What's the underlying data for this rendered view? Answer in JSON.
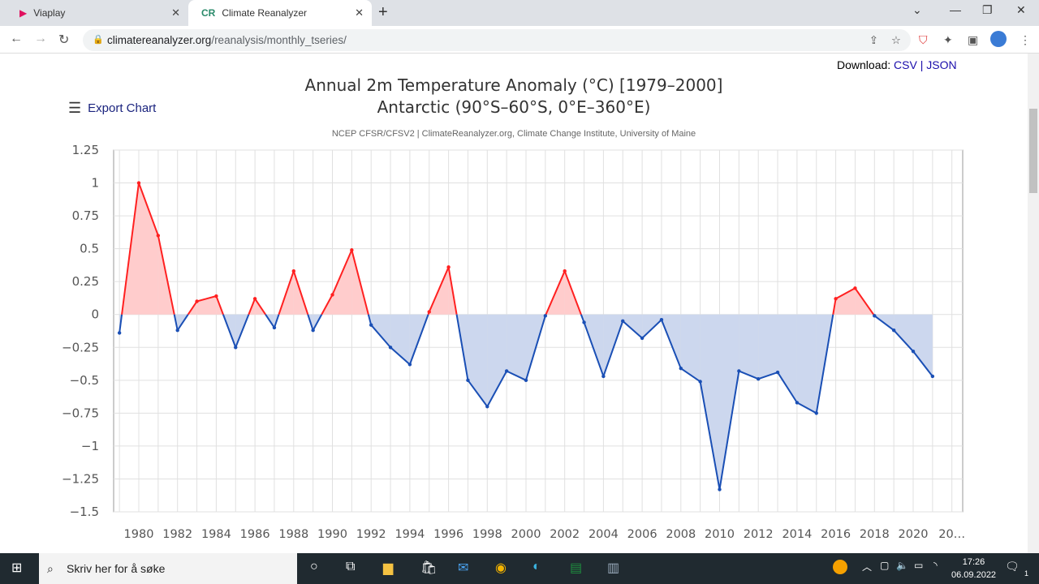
{
  "browser": {
    "tabs": [
      {
        "title": "Viaplay",
        "icon": "viaplay-icon"
      },
      {
        "title": "Climate Reanalyzer",
        "icon": "cr-icon",
        "active": true
      }
    ],
    "url_domain": "climatereanalyzer.org",
    "url_path": "/reanalysis/monthly_tseries/"
  },
  "page": {
    "download_label": "Download:",
    "csv": "CSV",
    "sep": "|",
    "json": "JSON",
    "export_label": "Export Chart",
    "credit": "NCEP CFSR/CFSV2 | ClimateReanalyzer.org, Climate Change Institute, University of Maine"
  },
  "chart_data": {
    "type": "area",
    "title": "Annual 2m Temperature Anomaly (°C) [1979–2000]",
    "subtitle": "Antarctic (90°S–60°S, 0°E–360°E)",
    "xlabel": "",
    "ylabel": "",
    "ylim": [
      -1.5,
      1.25
    ],
    "xlim": [
      1978.3,
      2022.5
    ],
    "yticks": [
      "1.25",
      "1",
      "0.75",
      "0.5",
      "0.25",
      "0",
      "-0.25",
      "-0.5",
      "-0.75",
      "-1",
      "-1.25",
      "-1.5"
    ],
    "xticks": [
      "1980",
      "1982",
      "1984",
      "1986",
      "1988",
      "1990",
      "1992",
      "1994",
      "1996",
      "1998",
      "2000",
      "2002",
      "2004",
      "2006",
      "2008",
      "2010",
      "2012",
      "2014",
      "2016",
      "2018",
      "2020",
      "20…"
    ],
    "grid": true,
    "positive_color": "#ff2020",
    "negative_color": "#1a4fb5",
    "positive_fill": "#ffcccc",
    "negative_fill": "#ccd7ee",
    "x": [
      1979,
      1980,
      1981,
      1982,
      1983,
      1984,
      1985,
      1986,
      1987,
      1988,
      1989,
      1990,
      1991,
      1992,
      1993,
      1994,
      1995,
      1996,
      1997,
      1998,
      1999,
      2000,
      2001,
      2002,
      2003,
      2004,
      2005,
      2006,
      2007,
      2008,
      2009,
      2010,
      2011,
      2012,
      2013,
      2014,
      2015,
      2016,
      2017,
      2018,
      2019,
      2020,
      2021
    ],
    "values": [
      -0.14,
      1.0,
      0.6,
      -0.12,
      0.1,
      0.14,
      -0.25,
      0.12,
      -0.1,
      0.33,
      -0.12,
      0.15,
      0.49,
      -0.08,
      -0.25,
      -0.38,
      0.02,
      0.36,
      -0.5,
      -0.7,
      -0.43,
      -0.5,
      -0.01,
      0.33,
      -0.06,
      -0.47,
      -0.05,
      -0.18,
      -0.04,
      -0.41,
      -0.51,
      -1.33,
      -0.43,
      -0.49,
      -0.44,
      -0.67,
      -0.75,
      0.12,
      0.2,
      -0.01,
      -0.12,
      -0.28,
      -0.47
    ]
  },
  "taskbar": {
    "search_placeholder": "Skriv her for å søke",
    "time": "17:26",
    "date": "06.09.2022",
    "notifications": "1"
  }
}
